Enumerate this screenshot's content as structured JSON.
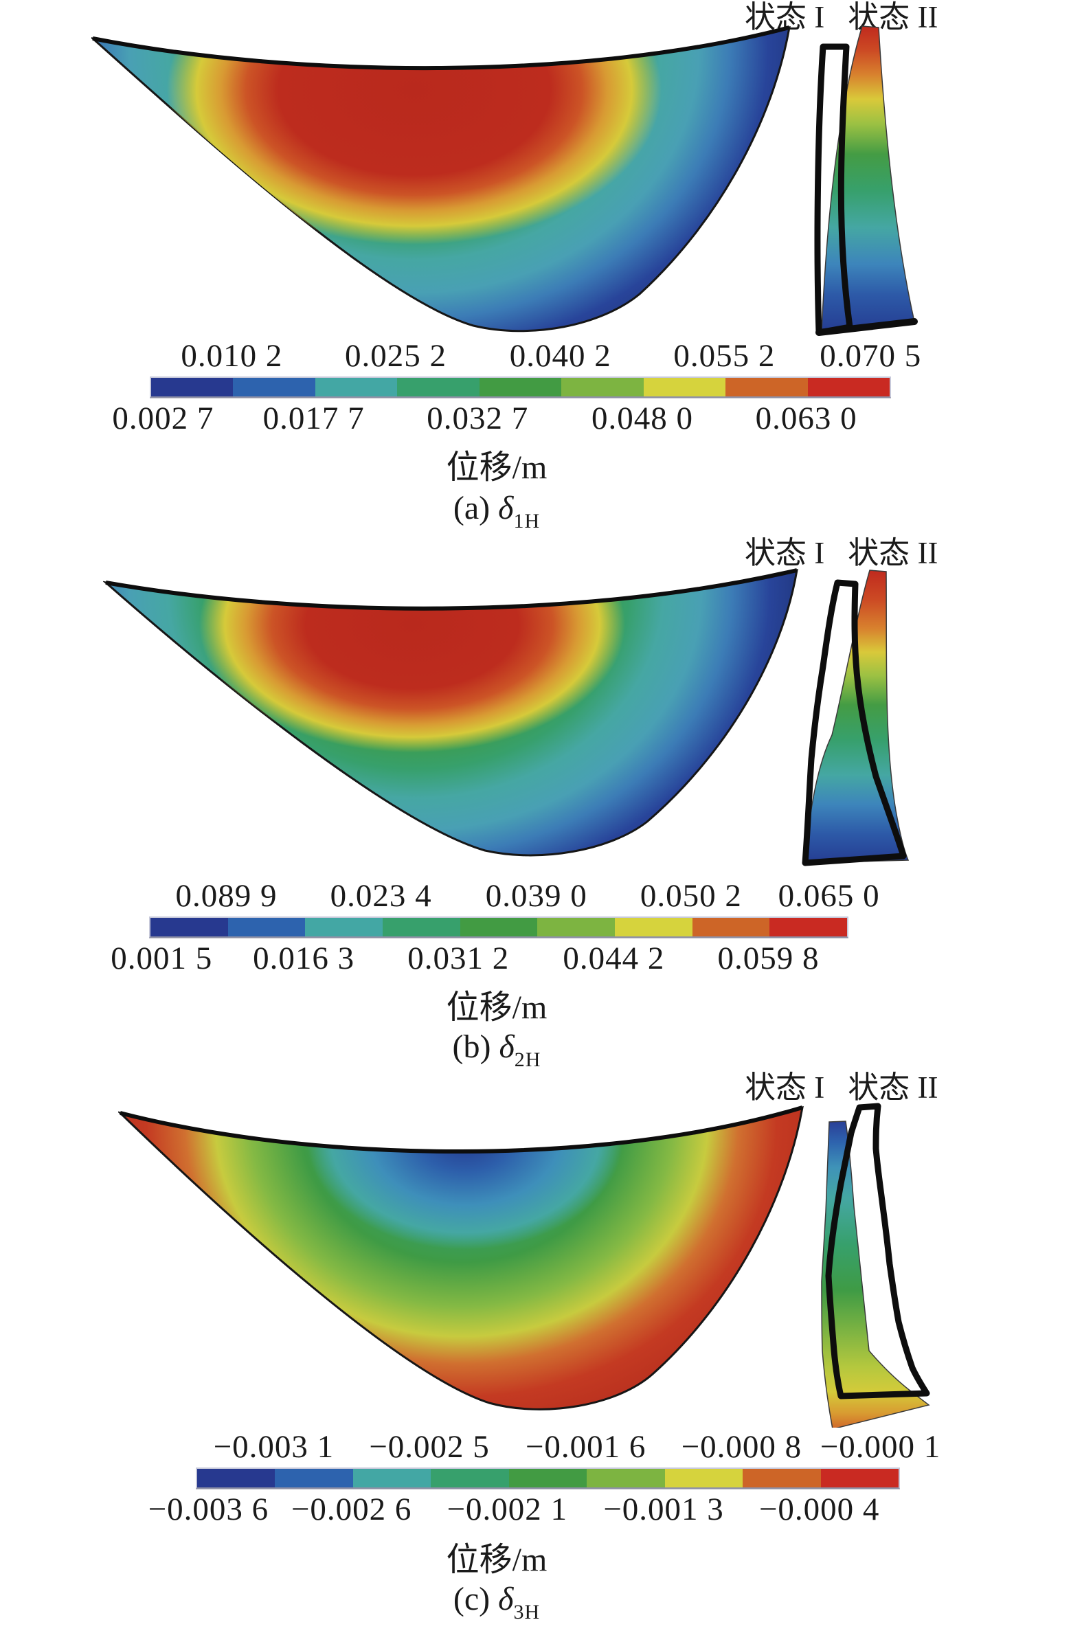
{
  "figure": {
    "colorbar": {
      "colors": [
        "#27398f",
        "#2d63ae",
        "#43a7a4",
        "#37a06c",
        "#429b43",
        "#7db441",
        "#d6d33d",
        "#cd6527",
        "#c92a22"
      ]
    },
    "panels": [
      {
        "state_labels": [
          "状态 I",
          "状态 II"
        ],
        "ticks_top": [
          "0.010 2",
          "0.025 2",
          "0.040 2",
          "0.055 2",
          "0.070 5"
        ],
        "ticks_bottom": [
          "0.002 7",
          "0.017 7",
          "0.032 7",
          "0.048 0",
          "0.063 0"
        ],
        "unit_label": "位移/m",
        "caption": {
          "index": "(a) ",
          "symbol": "δ",
          "subscript": "1H"
        }
      },
      {
        "state_labels": [
          "状态 I",
          "状态 II"
        ],
        "ticks_top": [
          "0.089 9",
          "0.023 4",
          "0.039 0",
          "0.050 2",
          "0.065 0"
        ],
        "ticks_bottom": [
          "0.001 5",
          "0.016 3",
          "0.031 2",
          "0.044 2",
          "0.059 8"
        ],
        "unit_label": "位移/m",
        "caption": {
          "index": "(b) ",
          "symbol": "δ",
          "subscript": "2H"
        }
      },
      {
        "state_labels": [
          "状态 I",
          "状态 II"
        ],
        "ticks_top": [
          "−0.003 1",
          "−0.002 5",
          "−0.001 6",
          "−0.000 8",
          "−0.000 1"
        ],
        "ticks_bottom": [
          "−0.003 6",
          "−0.002 6",
          "−0.002 1",
          "−0.001 3",
          "−0.000 4"
        ],
        "unit_label": "位移/m",
        "caption": {
          "index": "(c) ",
          "symbol": "δ",
          "subscript": "3H"
        }
      }
    ]
  },
  "chart_data": [
    {
      "type": "heatmap",
      "title": "(a) δ1H",
      "legend_title": "位移/m",
      "unit": "m",
      "states_legend": [
        "状态 I",
        "状态 II"
      ],
      "contour_levels": [
        0.0027,
        0.0102,
        0.0177,
        0.0252,
        0.0327,
        0.0402,
        0.048,
        0.0552,
        0.063,
        0.0705
      ],
      "tick_labels_top": [
        "0.010 2",
        "0.025 2",
        "0.040 2",
        "0.055 2",
        "0.070 5"
      ],
      "tick_labels_bottom": [
        "0.002 7",
        "0.017 7",
        "0.032 7",
        "0.048 0",
        "0.063 0"
      ],
      "palette": [
        "#27398f",
        "#2d63ae",
        "#43a7a4",
        "#37a06c",
        "#429b43",
        "#7db441",
        "#d6d33d",
        "#cd6527",
        "#c92a22"
      ],
      "max_region": "upper-center of dam face",
      "min_region": "abutment edges and base"
    },
    {
      "type": "heatmap",
      "title": "(b) δ2H",
      "legend_title": "位移/m",
      "unit": "m",
      "states_legend": [
        "状态 I",
        "状态 II"
      ],
      "contour_levels_as_printed": [
        0.0015,
        0.0899,
        0.0163,
        0.0234,
        0.0312,
        0.039,
        0.0442,
        0.0502,
        0.0598,
        0.065
      ],
      "tick_labels_top": [
        "0.089 9",
        "0.023 4",
        "0.039 0",
        "0.050 2",
        "0.065 0"
      ],
      "tick_labels_bottom": [
        "0.001 5",
        "0.016 3",
        "0.031 2",
        "0.044 2",
        "0.059 8"
      ],
      "palette": [
        "#27398f",
        "#2d63ae",
        "#43a7a4",
        "#37a06c",
        "#429b43",
        "#7db441",
        "#d6d33d",
        "#cd6527",
        "#c92a22"
      ],
      "max_region": "upper-center of dam face",
      "min_region": "abutment edges and base"
    },
    {
      "type": "heatmap",
      "title": "(c) δ3H",
      "legend_title": "位移/m",
      "unit": "m",
      "states_legend": [
        "状态 I",
        "状态 II"
      ],
      "contour_levels": [
        -0.0036,
        -0.0031,
        -0.0026,
        -0.0025,
        -0.0021,
        -0.0016,
        -0.0013,
        -0.0008,
        -0.0004,
        -0.0001
      ],
      "tick_labels_top": [
        "−0.003 1",
        "−0.002 5",
        "−0.001 6",
        "−0.000 8",
        "−0.000 1"
      ],
      "tick_labels_bottom": [
        "−0.003 6",
        "−0.002 6",
        "−0.002 1",
        "−0.001 3",
        "−0.000 4"
      ],
      "palette": [
        "#27398f",
        "#2d63ae",
        "#43a7a4",
        "#37a06c",
        "#429b43",
        "#7db441",
        "#d6d33d",
        "#cd6527",
        "#c92a22"
      ],
      "max_region": "abutment edges and base (least negative at edges)",
      "min_region": "upper-center of dam face (most negative)"
    }
  ]
}
